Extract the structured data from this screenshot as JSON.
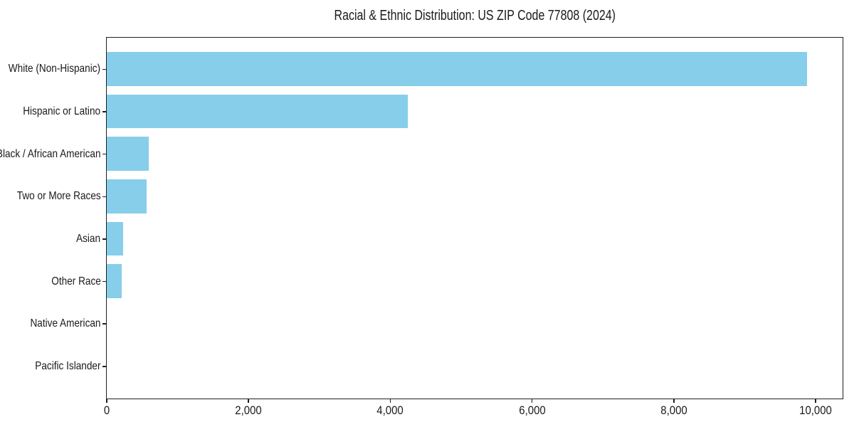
{
  "figure": {
    "title": "Racial & Ethnic Distribution: US ZIP Code 77808 (2024)",
    "background_color": "#ffffff",
    "accent_color": "#87CEEB"
  },
  "chart_data": {
    "type": "bar",
    "orientation": "horizontal",
    "title": "Racial & Ethnic Distribution: US ZIP Code 77808 (2024)",
    "categories": [
      "White (Non-Hispanic)",
      "Hispanic or Latino",
      "Black / African American",
      "Two or More Races",
      "Asian",
      "Other Race",
      "Native American",
      "Pacific Islander"
    ],
    "values": [
      9880,
      4255,
      595,
      565,
      240,
      220,
      0,
      0
    ],
    "bar_color": "#87CEEB",
    "xlabel": "",
    "ylabel": "",
    "xlim": [
      0,
      10374
    ],
    "x_tick_values": [
      0,
      2000,
      4000,
      6000,
      8000,
      10000
    ],
    "x_tick_labels": [
      "0",
      "2,000",
      "4,000",
      "6,000",
      "8,000",
      "10,000"
    ],
    "grid": false,
    "legend": false,
    "axis_color": "#1f1f1f",
    "text_color": "#1a1a1a"
  }
}
